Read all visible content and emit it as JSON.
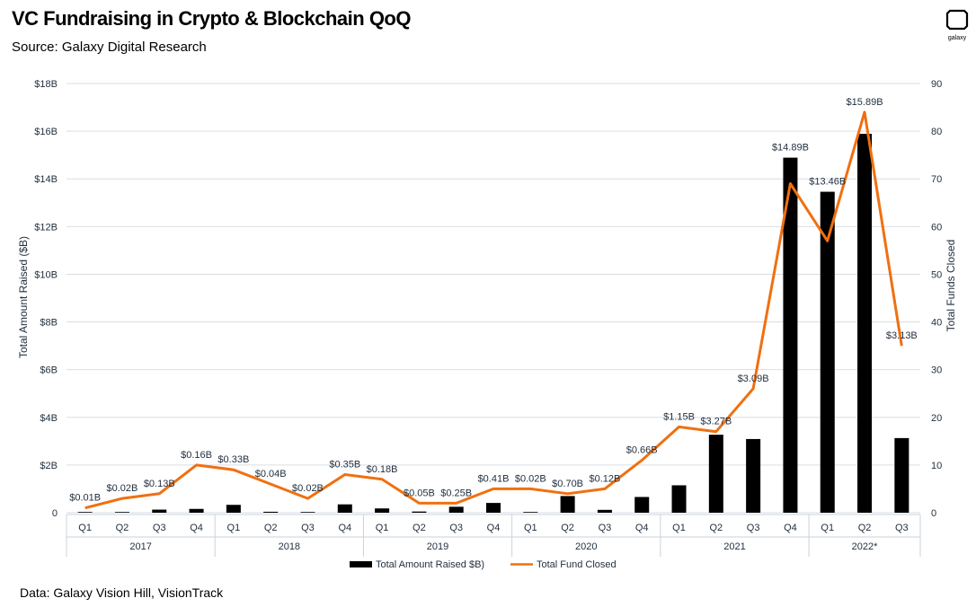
{
  "header": {
    "title": "VC Fundraising in Crypto & Blockchain QoQ",
    "subtitle": "Source: Galaxy Digital Research"
  },
  "logo": {
    "icon": "galaxy-logo-icon",
    "text": "galaxy"
  },
  "footer": {
    "text": "Data: Galaxy Vision Hill, VisionTrack"
  },
  "chart_data": {
    "type": "bar",
    "categories": [
      "Q1",
      "Q2",
      "Q3",
      "Q4",
      "Q1",
      "Q2",
      "Q3",
      "Q4",
      "Q1",
      "Q2",
      "Q3",
      "Q4",
      "Q1",
      "Q2",
      "Q3",
      "Q4",
      "Q1",
      "Q2",
      "Q3",
      "Q4",
      "Q1",
      "Q2",
      "Q3"
    ],
    "groups": [
      {
        "label": "2017",
        "count": 4
      },
      {
        "label": "2018",
        "count": 4
      },
      {
        "label": "2019",
        "count": 4
      },
      {
        "label": "2020",
        "count": 4
      },
      {
        "label": "2021",
        "count": 4
      },
      {
        "label": "2022*",
        "count": 3
      }
    ],
    "series": [
      {
        "name": "Total Amount Raised $B)",
        "type": "bar",
        "axis": "left",
        "color": "#000000",
        "values": [
          0.01,
          0.02,
          0.13,
          0.16,
          0.33,
          0.04,
          0.02,
          0.35,
          0.18,
          0.05,
          0.25,
          0.41,
          0.02,
          0.7,
          0.12,
          0.66,
          1.15,
          3.27,
          3.09,
          14.89,
          13.46,
          15.89,
          3.13
        ],
        "labels": [
          "$0.01B",
          "$0.02B",
          "$0.13B",
          "$0.16B",
          "$0.33B",
          "$0.04B",
          "$0.02B",
          "$0.35B",
          "$0.18B",
          "$0.05B",
          "$0.25B",
          "$0.41B",
          "$0.02B",
          "$0.70B",
          "$0.12B",
          "$0.66B",
          "$1.15B",
          "$3.27B",
          "$3.09B",
          "$14.89B",
          "$13.46B",
          "$15.89B",
          "$3.13B"
        ]
      },
      {
        "name": "Total Fund Closed",
        "type": "line",
        "axis": "right",
        "color": "#f07010",
        "values": [
          1,
          3,
          4,
          10,
          9,
          6,
          3,
          8,
          7,
          2,
          2,
          5,
          5,
          4,
          5,
          11,
          18,
          17,
          26,
          69,
          57,
          84,
          35
        ]
      }
    ],
    "ylabel": "Total Amount Raised ($B)",
    "y2label": "Total Funds Closed",
    "ylim": [
      0,
      18
    ],
    "y2lim": [
      0,
      90
    ],
    "yticks": [
      "0",
      "$2B",
      "$4B",
      "$6B",
      "$8B",
      "$10B",
      "$12B",
      "$14B",
      "$16B",
      "$18B"
    ],
    "y2ticks": [
      "0",
      "10",
      "20",
      "30",
      "40",
      "50",
      "60",
      "70",
      "80",
      "90"
    ],
    "legend": "bottom",
    "grid": true
  }
}
